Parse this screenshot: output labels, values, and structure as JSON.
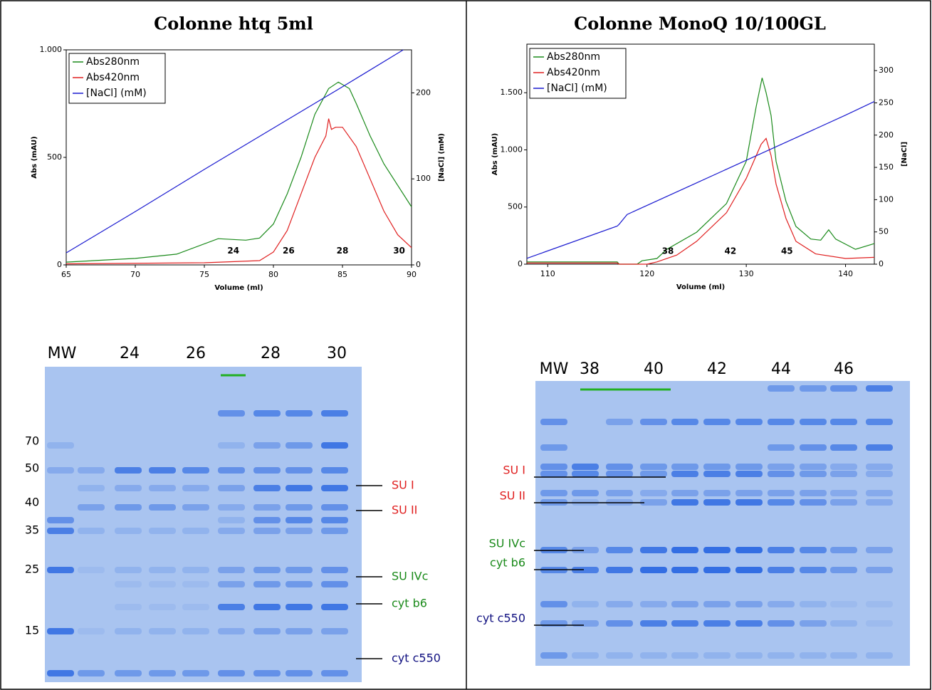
{
  "chart_data": [
    {
      "type": "line",
      "title": "Colonne htq 5ml",
      "x_label": "Volume (ml)",
      "y_label": "Abs (mAU)",
      "y2_label": "[NaCl] (mM)",
      "xlim": [
        65,
        90
      ],
      "xticks": [
        65,
        70,
        75,
        80,
        85,
        90
      ],
      "ylim": [
        0,
        1000
      ],
      "yticks": [
        0,
        500,
        {
          "value": 1000,
          "label": "1.000"
        }
      ],
      "y2lim": [
        0,
        250
      ],
      "y2ticks": [
        0,
        100,
        200
      ],
      "legend": "upper-left",
      "series": [
        {
          "name": "Abs280nm",
          "color": "#1a8a1a",
          "x": [
            65,
            70,
            73,
            76,
            78,
            79,
            80,
            81,
            82,
            83,
            84,
            84.7,
            85.5,
            86,
            87,
            88,
            89,
            90
          ],
          "values": [
            13,
            30,
            50,
            122,
            115,
            125,
            190,
            330,
            500,
            700,
            820,
            850,
            820,
            750,
            600,
            470,
            370,
            270
          ]
        },
        {
          "name": "Abs420nm",
          "color": "#e02020",
          "x": [
            65,
            75,
            79,
            80,
            81,
            82,
            83,
            83.8,
            84,
            84.2,
            84.5,
            85,
            86,
            87,
            88,
            89,
            90
          ],
          "values": [
            5,
            10,
            20,
            60,
            160,
            330,
            500,
            600,
            680,
            630,
            640,
            640,
            550,
            400,
            250,
            140,
            80
          ]
        },
        {
          "name": "[NaCl] (mM)",
          "color": "#1a1ad0",
          "axis": "y2",
          "x": [
            65,
            70,
            75,
            80,
            85,
            89.4
          ],
          "values": [
            14,
            62,
            111,
            159,
            207,
            250
          ]
        }
      ],
      "annotations": [
        {
          "text": "24",
          "x": 77.1,
          "y": 65
        },
        {
          "text": "26",
          "x": 81.1,
          "y": 65
        },
        {
          "text": "28",
          "x": 85.0,
          "y": 65
        },
        {
          "text": "30",
          "x": 89.1,
          "y": 65
        }
      ]
    },
    {
      "type": "line",
      "title": "Colonne MonoQ 10/100GL",
      "x_label": "Volume (ml)",
      "y_label": "Abs (mAU)",
      "y2_label": "[NaCl]",
      "xlim": [
        107.9,
        142.9
      ],
      "xticks": [
        110,
        120,
        130,
        140
      ],
      "ylim": [
        0,
        1925
      ],
      "yticks": [
        0,
        500,
        {
          "value": 1000,
          "label": "1.000"
        },
        {
          "value": 1500,
          "label": "1.500"
        }
      ],
      "y2lim": [
        0,
        341
      ],
      "y2ticks": [
        0,
        50,
        100,
        150,
        200,
        250,
        300
      ],
      "legend": "upper-left",
      "series": [
        {
          "name": "Abs280nm",
          "color": "#1a8a1a",
          "x": [
            107.9,
            117,
            117.2,
            119,
            119.5,
            121,
            122,
            125,
            128,
            130,
            131,
            131.6,
            132,
            132.5,
            133,
            134,
            135,
            136.5,
            137.5,
            138.3,
            139,
            141,
            142.9
          ],
          "values": [
            20,
            20,
            0,
            0,
            30,
            50,
            130,
            280,
            530,
            900,
            1380,
            1630,
            1500,
            1300,
            900,
            550,
            330,
            220,
            210,
            300,
            220,
            130,
            180
          ]
        },
        {
          "name": "Abs420nm",
          "color": "#e02020",
          "x": [
            107.9,
            117,
            117.2,
            120,
            121,
            123,
            125,
            128,
            130,
            131.5,
            132,
            132.5,
            133,
            134,
            135,
            137,
            140,
            142.9
          ],
          "values": [
            10,
            10,
            0,
            0,
            20,
            80,
            200,
            450,
            750,
            1050,
            1100,
            950,
            700,
            400,
            200,
            90,
            50,
            60
          ]
        },
        {
          "name": "[NaCl] (mM)",
          "color": "#1a1ad0",
          "axis": "y2",
          "x": [
            107.9,
            117,
            117.2,
            118,
            125,
            130,
            135,
            140,
            142.9
          ],
          "values": [
            9,
            59,
            62,
            77,
            126,
            161,
            196,
            231,
            252
          ]
        }
      ],
      "annotations": [
        {
          "text": "38",
          "x": 122.1,
          "y": 112
        },
        {
          "text": "42",
          "x": 128.4,
          "y": 112
        },
        {
          "text": "45",
          "x": 134.1,
          "y": 112
        }
      ]
    }
  ],
  "gels": [
    {
      "lanes": [
        "MW",
        "24",
        "26",
        "28",
        "30"
      ],
      "mw_markers": [
        "70",
        "50",
        "40",
        "35",
        "25",
        "15"
      ],
      "annotations": [
        {
          "text": "SU I",
          "color": "#e02020"
        },
        {
          "text": "SU II",
          "color": "#e02020"
        },
        {
          "text": "SU IVc",
          "color": "#1a8a1a"
        },
        {
          "text": "cyt b6",
          "color": "#1a8a1a"
        },
        {
          "text": "cyt c550",
          "color": "#101080"
        }
      ]
    },
    {
      "lanes": [
        "MW",
        "38",
        "40",
        "42",
        "44",
        "46"
      ],
      "annotations": [
        {
          "text": "SU I",
          "color": "#e02020"
        },
        {
          "text": "SU II",
          "color": "#e02020"
        },
        {
          "text": "SU IVc",
          "color": "#1a8a1a"
        },
        {
          "text": "cyt b6",
          "color": "#1a8a1a"
        },
        {
          "text": "cyt c550",
          "color": "#101080"
        }
      ]
    }
  ]
}
